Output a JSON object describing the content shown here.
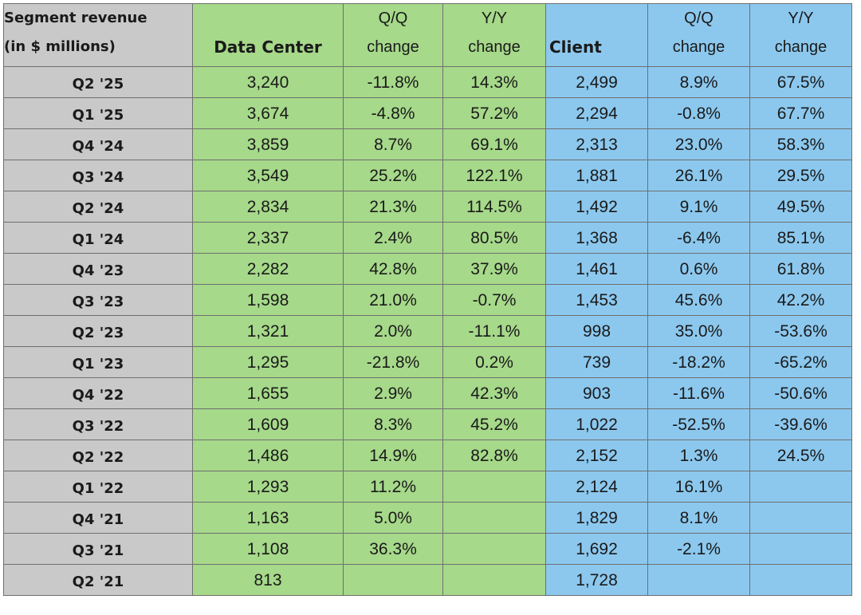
{
  "header": {
    "segment_line1": "Segment revenue",
    "segment_line2": "(in $ millions)",
    "data_center": "Data Center",
    "dc_qq_line1": "Q/Q",
    "dc_qq_line2": "change",
    "dc_yy_line1": "Y/Y",
    "dc_yy_line2": "change",
    "client": "Client",
    "cl_qq_line1": "Q/Q",
    "cl_qq_line2": "change",
    "cl_yy_line1": "Y/Y",
    "cl_yy_line2": "change"
  },
  "colors": {
    "label_bg": "#c9c9c9",
    "data_center_bg": "#a6d98a",
    "client_bg": "#8cc8ee"
  },
  "rows": [
    {
      "quarter": "Q2 '25",
      "dc": "3,240",
      "dc_qq": "-11.8%",
      "dc_yy": "14.3%",
      "client": "2,499",
      "cl_qq": "8.9%",
      "cl_yy": "67.5%"
    },
    {
      "quarter": "Q1 '25",
      "dc": "3,674",
      "dc_qq": "-4.8%",
      "dc_yy": "57.2%",
      "client": "2,294",
      "cl_qq": "-0.8%",
      "cl_yy": "67.7%"
    },
    {
      "quarter": "Q4 '24",
      "dc": "3,859",
      "dc_qq": "8.7%",
      "dc_yy": "69.1%",
      "client": "2,313",
      "cl_qq": "23.0%",
      "cl_yy": "58.3%"
    },
    {
      "quarter": "Q3 '24",
      "dc": "3,549",
      "dc_qq": "25.2%",
      "dc_yy": "122.1%",
      "client": "1,881",
      "cl_qq": "26.1%",
      "cl_yy": "29.5%"
    },
    {
      "quarter": "Q2 '24",
      "dc": "2,834",
      "dc_qq": "21.3%",
      "dc_yy": "114.5%",
      "client": "1,492",
      "cl_qq": "9.1%",
      "cl_yy": "49.5%"
    },
    {
      "quarter": "Q1 '24",
      "dc": "2,337",
      "dc_qq": "2.4%",
      "dc_yy": "80.5%",
      "client": "1,368",
      "cl_qq": "-6.4%",
      "cl_yy": "85.1%"
    },
    {
      "quarter": "Q4 '23",
      "dc": "2,282",
      "dc_qq": "42.8%",
      "dc_yy": "37.9%",
      "client": "1,461",
      "cl_qq": "0.6%",
      "cl_yy": "61.8%"
    },
    {
      "quarter": "Q3 '23",
      "dc": "1,598",
      "dc_qq": "21.0%",
      "dc_yy": "-0.7%",
      "client": "1,453",
      "cl_qq": "45.6%",
      "cl_yy": "42.2%"
    },
    {
      "quarter": "Q2 '23",
      "dc": "1,321",
      "dc_qq": "2.0%",
      "dc_yy": "-11.1%",
      "client": "998",
      "cl_qq": "35.0%",
      "cl_yy": "-53.6%"
    },
    {
      "quarter": "Q1 '23",
      "dc": "1,295",
      "dc_qq": "-21.8%",
      "dc_yy": "0.2%",
      "client": "739",
      "cl_qq": "-18.2%",
      "cl_yy": "-65.2%"
    },
    {
      "quarter": "Q4 '22",
      "dc": "1,655",
      "dc_qq": "2.9%",
      "dc_yy": "42.3%",
      "client": "903",
      "cl_qq": "-11.6%",
      "cl_yy": "-50.6%"
    },
    {
      "quarter": "Q3 '22",
      "dc": "1,609",
      "dc_qq": "8.3%",
      "dc_yy": "45.2%",
      "client": "1,022",
      "cl_qq": "-52.5%",
      "cl_yy": "-39.6%"
    },
    {
      "quarter": "Q2 '22",
      "dc": "1,486",
      "dc_qq": "14.9%",
      "dc_yy": "82.8%",
      "client": "2,152",
      "cl_qq": "1.3%",
      "cl_yy": "24.5%"
    },
    {
      "quarter": "Q1 '22",
      "dc": "1,293",
      "dc_qq": "11.2%",
      "dc_yy": "",
      "client": "2,124",
      "cl_qq": "16.1%",
      "cl_yy": ""
    },
    {
      "quarter": "Q4 '21",
      "dc": "1,163",
      "dc_qq": "5.0%",
      "dc_yy": "",
      "client": "1,829",
      "cl_qq": "8.1%",
      "cl_yy": ""
    },
    {
      "quarter": "Q3 '21",
      "dc": "1,108",
      "dc_qq": "36.3%",
      "dc_yy": "",
      "client": "1,692",
      "cl_qq": "-2.1%",
      "cl_yy": ""
    },
    {
      "quarter": "Q2 '21",
      "dc": "813",
      "dc_qq": "",
      "dc_yy": "",
      "client": "1,728",
      "cl_qq": "",
      "cl_yy": ""
    }
  ]
}
